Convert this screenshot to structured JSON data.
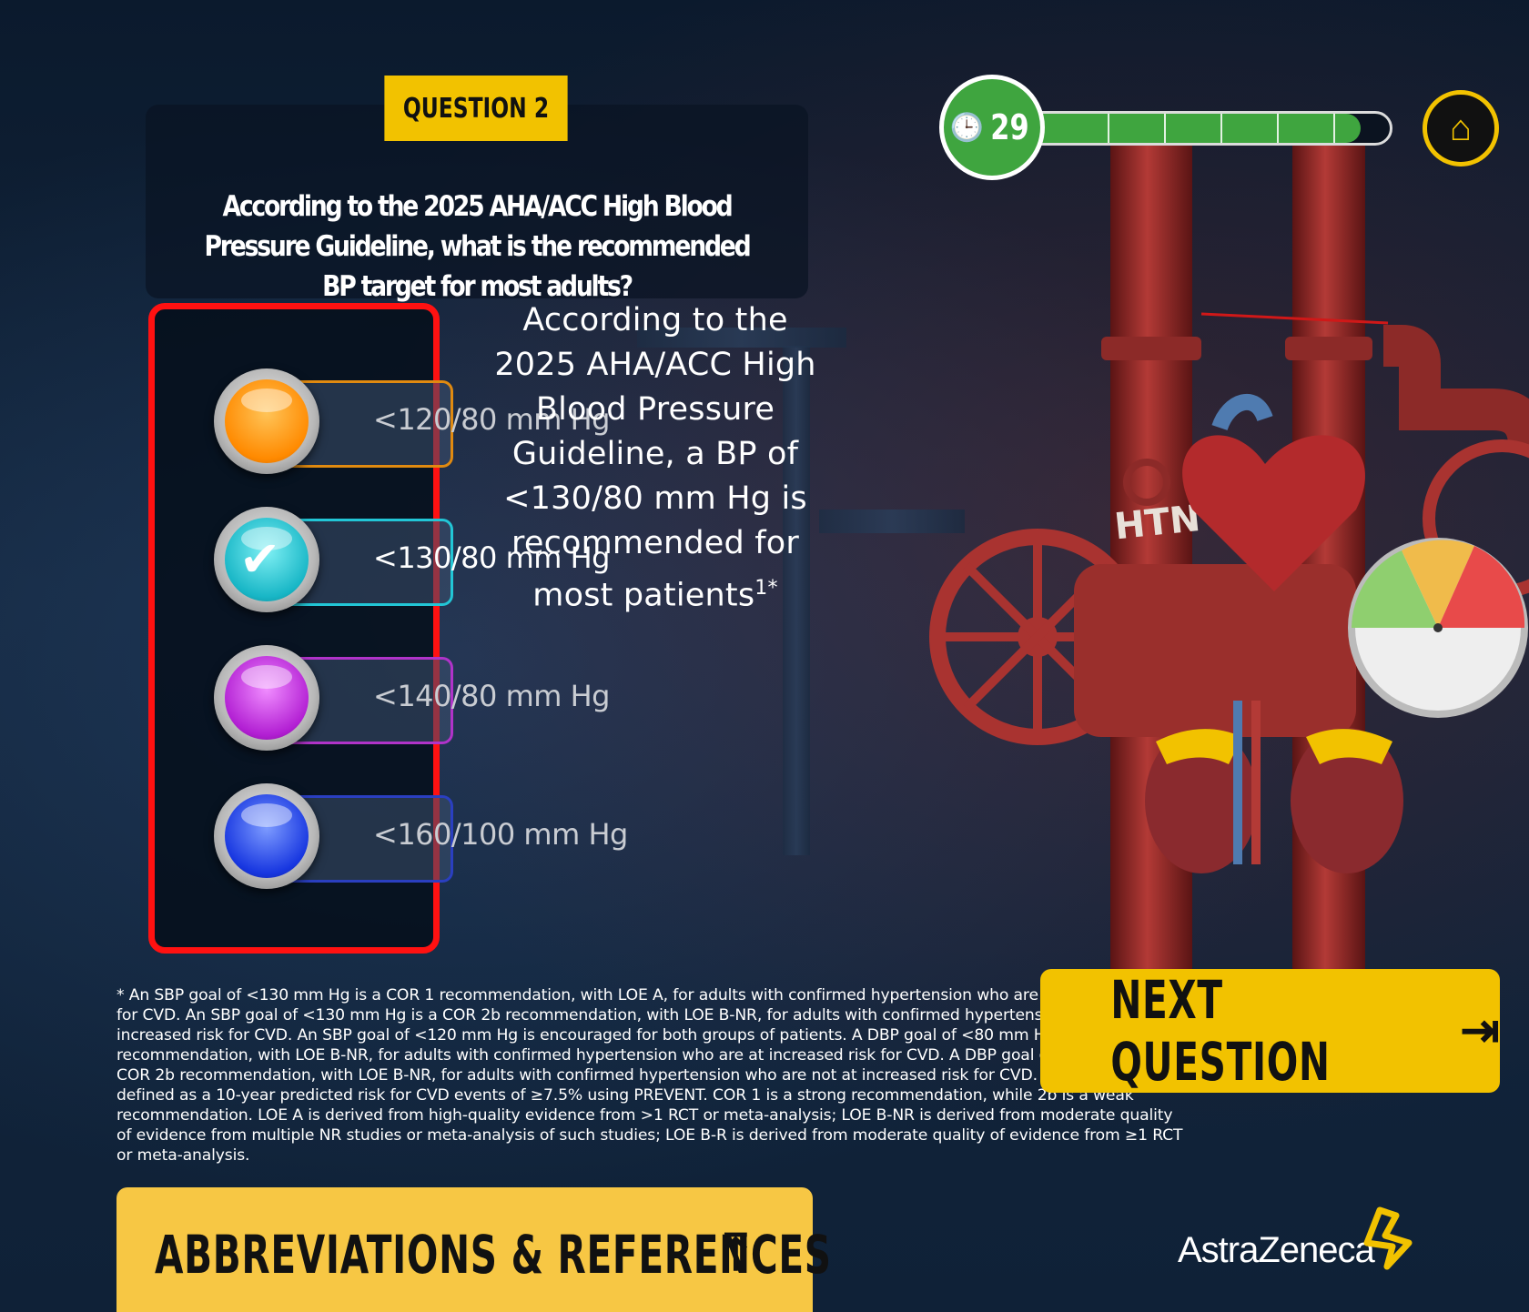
{
  "question": {
    "tag": "QUESTION 2",
    "text": "According to the 2025 AHA/ACC High Blood Pressure Guideline, what is the recommended BP target for most adults?"
  },
  "options": [
    {
      "label": "<120/80 mm Hg",
      "color": "#e08a10",
      "orb": "#ff9a10",
      "selected": false
    },
    {
      "label": "<130/80 mm Hg",
      "color": "#22c6d6",
      "orb": "#19b8c8",
      "selected": true
    },
    {
      "label": "<140/80 mm Hg",
      "color": "#b033c9",
      "orb": "#b620d6",
      "selected": false
    },
    {
      "label": "<160/100 mm Hg",
      "color": "#2a3fc0",
      "orb": "#1736e0",
      "selected": false
    }
  ],
  "explanation": {
    "text": "According to the 2025 AHA/ACC High Blood Pressure Guideline, a BP of <130/80 mm Hg is recommended for most patients",
    "superscript": "1*"
  },
  "timer": {
    "value": "29",
    "clock_icon": "clock-icon",
    "progress": 0.92,
    "segments": 6,
    "color": "#3fa53f"
  },
  "home": {
    "icon": "home-icon"
  },
  "illustration": {
    "pipe_text": "HTN"
  },
  "footnote": "* An SBP goal of <130 mm Hg is a COR 1 recommendation, with LOE A, for adults with confirmed hypertension who are at increased risk for CVD. An SBP goal of <130 mm Hg is a COR 2b recommendation, with LOE B-NR, for adults with confirmed hypertension who are not at increased risk for CVD. An SBP goal of <120 mm Hg is encouraged for both groups of patients. A DBP goal of <80 mm Hg is a COR 1 recommendation, with LOE B-NR, for adults with confirmed hypertension who are at increased risk for CVD. A DBP goal of <80 mm Hg is a COR 2b recommendation, with LOE B-NR, for adults with confirmed hypertension who are not at increased risk for CVD. Increased risk is defined as a 10-year predicted risk for CVD events of ≥7.5% using PREVENT. COR 1 is a strong recommendation, while 2b is a weak recommendation. LOE A is derived from high-quality evidence from >1 RCT or meta-analysis; LOE B-NR is derived from moderate quality of evidence from multiple NR studies or meta-analysis of such studies; LOE B-R is derived from moderate quality of evidence from ≥1 RCT or meta-analysis.",
  "next_button": {
    "label": "NEXT QUESTION",
    "icon": "arrow-right-icon"
  },
  "abbrev_button": {
    "label": "ABBREVIATIONS & REFERENCES",
    "icon": "arrow-up-icon"
  },
  "brand": {
    "name": "AstraZeneca",
    "accent": "#f2c200"
  }
}
